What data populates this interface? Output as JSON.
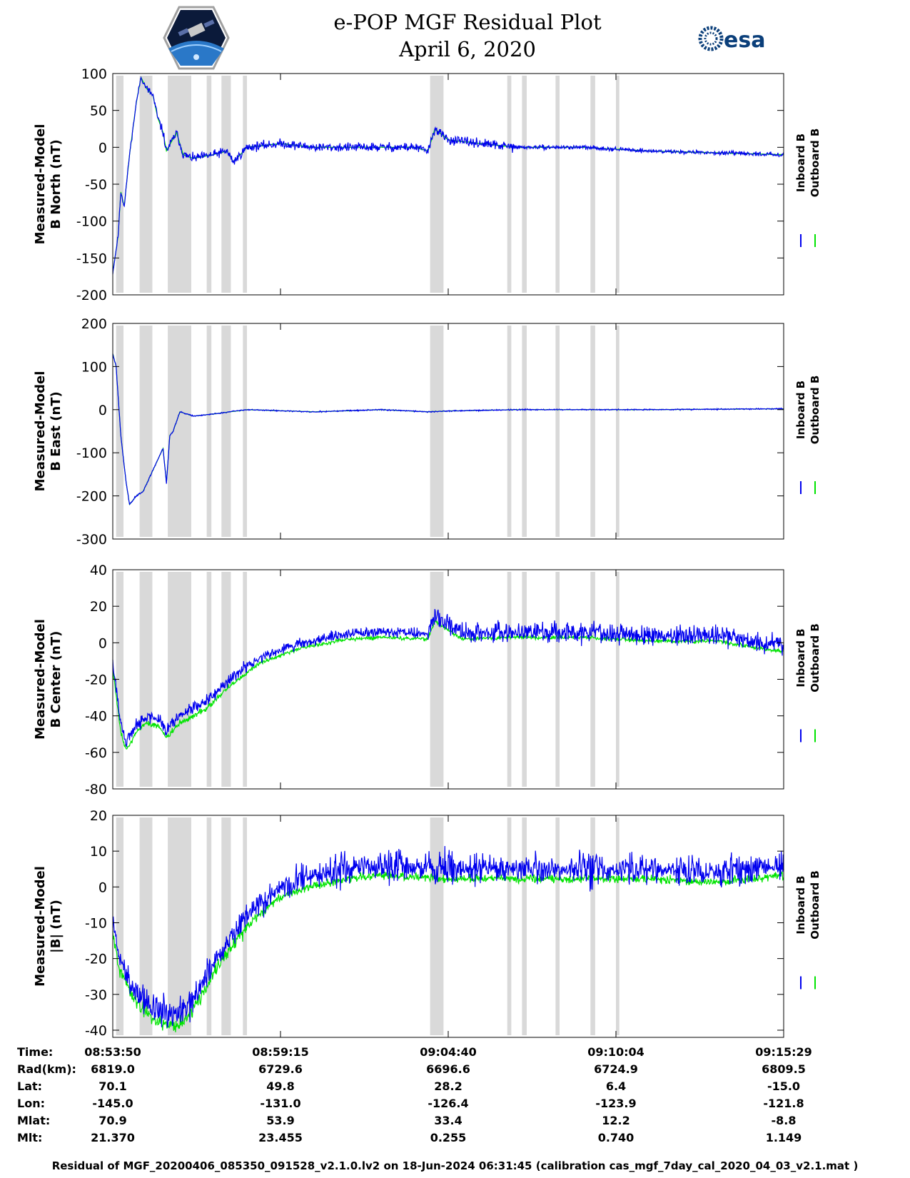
{
  "title": "e-POP MGF Residual Plot",
  "date": "April 6, 2020",
  "logos": {
    "left": "cassiope-mission-patch",
    "right_text": "esa"
  },
  "colors": {
    "inboard": "#0000ee",
    "outboard": "#00e400",
    "shade": "#d9d9d9"
  },
  "chart_data": [
    {
      "type": "line",
      "ylabel": [
        "Measured-Model",
        "B North (nT)"
      ],
      "ylim": [
        -200,
        100
      ],
      "yticks": [
        100,
        50,
        0,
        -50,
        -100,
        -150,
        -200
      ],
      "series": [
        {
          "name": "Inboard B"
        },
        {
          "name": "Outboard B"
        }
      ],
      "legend_position": "right-vertical",
      "shape": "north"
    },
    {
      "type": "line",
      "ylabel": [
        "Measured-Model",
        "B East (nT)"
      ],
      "ylim": [
        -300,
        200
      ],
      "yticks": [
        200,
        100,
        0,
        -100,
        -200,
        -300
      ],
      "series": [
        {
          "name": "Inboard B"
        },
        {
          "name": "Outboard B"
        }
      ],
      "legend_position": "right-vertical",
      "shape": "east"
    },
    {
      "type": "line",
      "ylabel": [
        "Measured-Model",
        "B Center (nT)"
      ],
      "ylim": [
        -80,
        40
      ],
      "yticks": [
        40,
        20,
        0,
        -20,
        -40,
        -60,
        -80
      ],
      "series": [
        {
          "name": "Inboard B"
        },
        {
          "name": "Outboard B"
        }
      ],
      "legend_position": "right-vertical",
      "shape": "center"
    },
    {
      "type": "line",
      "ylabel": [
        "Measured-Model",
        "|B| (nT)"
      ],
      "ylim": [
        -42,
        20
      ],
      "yticks": [
        20,
        10,
        0,
        -10,
        -20,
        -30,
        -40
      ],
      "series": [
        {
          "name": "Inboard B"
        },
        {
          "name": "Outboard B"
        }
      ],
      "legend_position": "right-vertical",
      "shape": "magnitude"
    }
  ],
  "x_axis": {
    "fraction_ticks": [
      0,
      0.25,
      0.5,
      0.75,
      1.0
    ],
    "shaded_intervals": [
      [
        0.005,
        0.016
      ],
      [
        0.04,
        0.059
      ],
      [
        0.082,
        0.117
      ],
      [
        0.14,
        0.147
      ],
      [
        0.162,
        0.176
      ],
      [
        0.194,
        0.2
      ],
      [
        0.473,
        0.493
      ],
      [
        0.588,
        0.594
      ],
      [
        0.61,
        0.617
      ],
      [
        0.66,
        0.666
      ],
      [
        0.712,
        0.719
      ],
      [
        0.75,
        0.755
      ]
    ]
  },
  "info_table": {
    "rows": [
      {
        "label": "Time:",
        "values": [
          "08:53:50",
          "08:59:15",
          "09:04:40",
          "09:10:04",
          "09:15:29"
        ]
      },
      {
        "label": "Rad(km):",
        "values": [
          "6819.0",
          "6729.6",
          "6696.6",
          "6724.9",
          "6809.5"
        ]
      },
      {
        "label": "Lat:",
        "values": [
          "70.1",
          "49.8",
          "28.2",
          "6.4",
          "-15.0"
        ]
      },
      {
        "label": "Lon:",
        "values": [
          "-145.0",
          "-131.0",
          "-126.4",
          "-123.9",
          "-121.8"
        ]
      },
      {
        "label": "Mlat:",
        "values": [
          "70.9",
          "53.9",
          "33.4",
          "12.2",
          "-8.8"
        ]
      },
      {
        "label": "Mlt:",
        "values": [
          "21.370",
          "23.455",
          "0.255",
          "0.740",
          "1.149"
        ]
      }
    ]
  },
  "footer": "Residual of MGF_20200406_085350_091528_v2.1.0.lv2 on 18-Jun-2024 06:31:45 (calibration cas_mgf_7day_cal_2020_04_03_v2.1.mat )"
}
